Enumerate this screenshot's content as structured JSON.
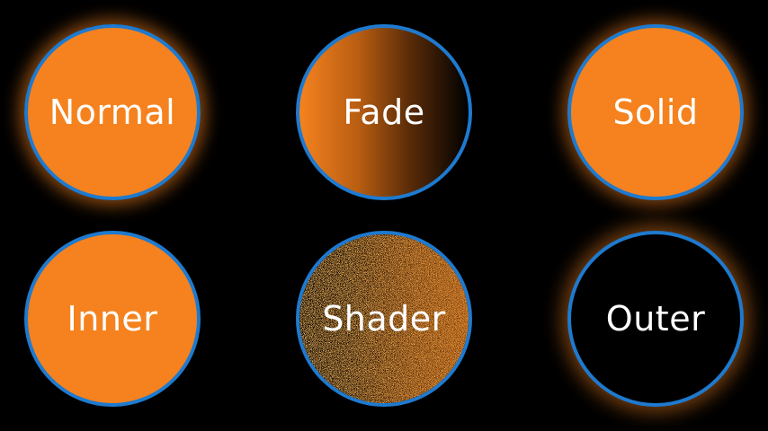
{
  "circles": {
    "normal": {
      "label": "Normal"
    },
    "fade": {
      "label": "Fade"
    },
    "solid": {
      "label": "Solid"
    },
    "inner": {
      "label": "Inner"
    },
    "shader": {
      "label": "Shader"
    },
    "outer": {
      "label": "Outer"
    }
  },
  "colors": {
    "fill": "#F5821E",
    "border": "#1E7ACF",
    "background": "#000000",
    "text": "#FFFFFF"
  }
}
